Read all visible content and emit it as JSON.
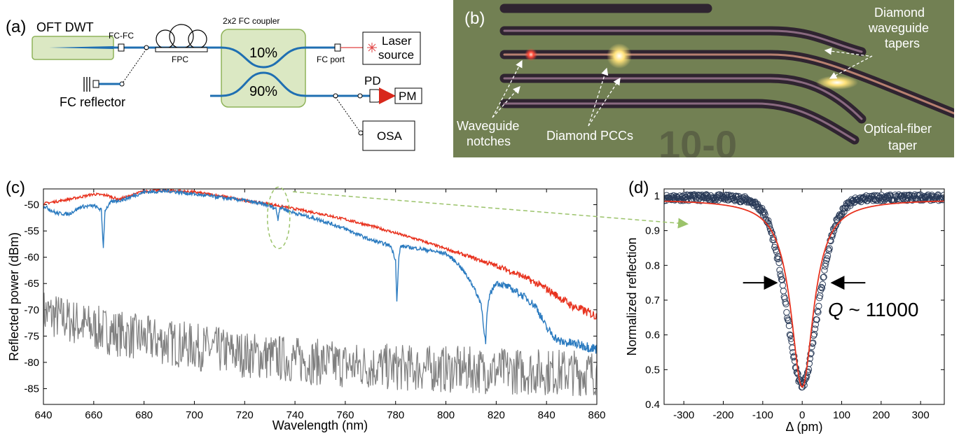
{
  "panels": {
    "a": {
      "tag": "(a)",
      "labels": {
        "oft": "OFT DWT",
        "fcfc": "FC-FC",
        "fpc": "FPC",
        "coupler": "2x2 FC coupler",
        "pct10": "10%",
        "pct90": "90%",
        "fcport": "FC port",
        "laser1": "Laser",
        "laser2": "source",
        "pd": "PD",
        "pm": "PM",
        "osa": "OSA",
        "reflector": "FC reflector"
      },
      "colors": {
        "fiber": "#1f6fb2",
        "laser_fiber": "#e04040",
        "green_box": "#dbe8c3",
        "green_edge": "#8fb35a"
      }
    },
    "b": {
      "tag": "(b)",
      "labels": {
        "tapers1": "Diamond",
        "tapers2": "waveguide",
        "tapers3": "tapers",
        "notches1": "Waveguide",
        "notches2": "notches",
        "pccs": "Diamond PCCs",
        "fiber1": "Optical-fiber",
        "fiber2": "taper",
        "watermark": "10-0"
      },
      "colors": {
        "bg": "#6b7a4e",
        "waveguide": "#3b2f3a",
        "glow": "#ffe27a",
        "red_spot": "#ff4a3a"
      }
    },
    "c": {
      "tag": "(c)"
    },
    "d": {
      "tag": "(d)",
      "annotation_q": "Q",
      "annotation_rest": " ~ 11000"
    }
  },
  "chart_data": [
    {
      "type": "line",
      "panel": "c",
      "xlabel": "Wavelength (nm)",
      "ylabel": "Reflected power (dBm)",
      "xlim": [
        640,
        860
      ],
      "ylim": [
        -88,
        -47
      ],
      "xticks": [
        640,
        660,
        680,
        700,
        720,
        740,
        760,
        780,
        800,
        820,
        840,
        860
      ],
      "yticks": [
        -85,
        -80,
        -75,
        -70,
        -65,
        -60,
        -55,
        -50
      ],
      "series": [
        {
          "color": "#e8321e",
          "x": [
            640,
            650,
            660,
            665,
            670,
            680,
            690,
            700,
            710,
            720,
            730,
            740,
            750,
            760,
            770,
            780,
            790,
            800,
            810,
            820,
            830,
            840,
            850,
            860
          ],
          "y": [
            -49.8,
            -49.0,
            -48.0,
            -48.2,
            -49.0,
            -47.4,
            -47.3,
            -47.6,
            -48.3,
            -49.2,
            -49.9,
            -50.8,
            -51.7,
            -52.8,
            -54.0,
            -55.4,
            -56.8,
            -58.4,
            -60.0,
            -61.6,
            -63.5,
            -66.0,
            -69.2,
            -71.2
          ]
        },
        {
          "color": "#2b7bc0",
          "x": [
            640,
            645,
            650,
            655,
            660,
            663,
            663.8,
            664.5,
            667,
            672,
            680,
            690,
            700,
            710,
            720,
            730,
            732.5,
            733.2,
            734,
            740,
            750,
            760,
            770,
            778,
            780,
            780.5,
            781.3,
            782,
            790,
            800,
            805,
            810,
            814,
            815.8,
            816.3,
            817.5,
            820,
            824,
            828,
            832,
            836,
            840,
            845,
            850,
            855,
            860
          ],
          "y": [
            -50.2,
            -51.6,
            -51.8,
            -50.4,
            -50.2,
            -51.0,
            -58.0,
            -51.0,
            -49.5,
            -49.0,
            -47.6,
            -47.4,
            -48.0,
            -48.6,
            -49.2,
            -50.2,
            -50.8,
            -52.8,
            -50.5,
            -51.6,
            -52.9,
            -54.6,
            -56.7,
            -57.8,
            -60.5,
            -68.4,
            -60.0,
            -57.9,
            -58.4,
            -59.3,
            -61.3,
            -64.7,
            -68.8,
            -76.5,
            -71.0,
            -67.0,
            -64.8,
            -65.5,
            -66.5,
            -67.8,
            -69.5,
            -73.5,
            -76.0,
            -76.4,
            -76.8,
            -77.5
          ]
        },
        {
          "color": "#808080",
          "noise": true,
          "x": [
            640,
            660,
            680,
            700,
            720,
            740,
            760,
            780,
            800,
            820,
            840,
            860
          ],
          "y": [
            -70.5,
            -73.5,
            -75.5,
            -77.0,
            -78.5,
            -79.5,
            -80.5,
            -81.0,
            -81.3,
            -81.6,
            -81.8,
            -82.0
          ]
        }
      ],
      "annotation": {
        "ellipse_center": [
          733.5,
          -52.5
        ],
        "color": "#9bc36a"
      }
    },
    {
      "type": "scatter",
      "panel": "d",
      "xlabel": "Δ (pm)",
      "ylabel": "Normalized reflection",
      "xlim": [
        -350,
        360
      ],
      "ylim": [
        0.4,
        1.02
      ],
      "xticks": [
        -300,
        -200,
        -100,
        0,
        100,
        200,
        300
      ],
      "yticks": [
        0.4,
        0.5,
        0.6,
        0.7,
        0.8,
        0.9,
        1
      ],
      "ytick_labels": [
        "0.4",
        "0.5",
        "0.6",
        "0.7",
        "0.8",
        "0.9",
        "1"
      ],
      "dip": {
        "center": 0,
        "depth": 0.54,
        "baseline": 0.99,
        "fwhm_data": 68,
        "fwhm_fit": 70
      },
      "series": [
        {
          "kind": "markers",
          "color": "#2a3b58"
        },
        {
          "kind": "line",
          "color": "#e8321e"
        }
      ],
      "arrows": {
        "left_from": -150,
        "left_to": -65,
        "right_from": 160,
        "right_to": 75,
        "y": 0.75
      }
    }
  ]
}
